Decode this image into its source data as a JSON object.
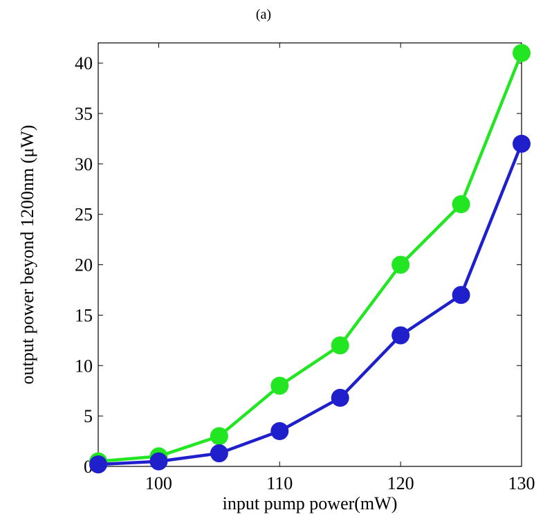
{
  "panel_label": "(a)",
  "chart_data": {
    "type": "line",
    "title": "",
    "xlabel": "input pump power(mW)",
    "ylabel": "output power beyond 1200nm (μW)",
    "xlim": [
      95,
      130
    ],
    "ylim": [
      0,
      42
    ],
    "xticks": [
      100,
      110,
      120,
      130
    ],
    "yticks": [
      0,
      5,
      10,
      15,
      20,
      25,
      30,
      35,
      40
    ],
    "grid": false,
    "legend": "none",
    "x": [
      95,
      100,
      105,
      110,
      115,
      120,
      125,
      130
    ],
    "series": [
      {
        "color": "#22e622",
        "values": [
          0.5,
          1.0,
          3.0,
          8.0,
          12.0,
          20.0,
          26.0,
          41.0
        ]
      },
      {
        "color": "#1f1fcc",
        "values": [
          0.2,
          0.5,
          1.3,
          3.5,
          6.8,
          13.0,
          17.0,
          32.0
        ]
      }
    ]
  }
}
